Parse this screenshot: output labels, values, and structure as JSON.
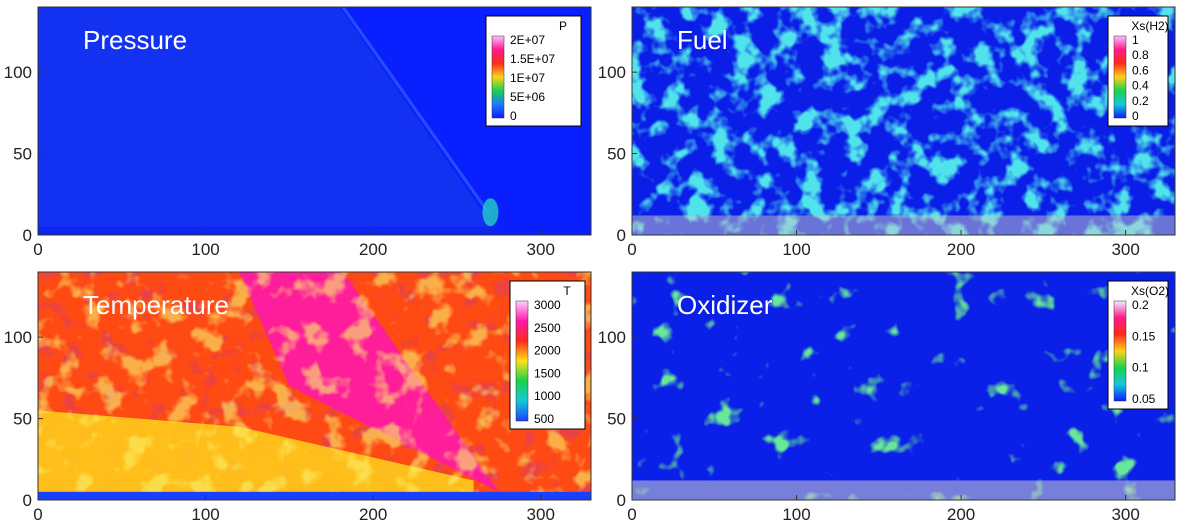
{
  "chart_data": [
    {
      "type": "heatmap",
      "title": "Pressure",
      "xlim": [
        0,
        330
      ],
      "ylim": [
        0,
        140
      ],
      "x_ticks": [
        "0",
        "100",
        "200",
        "300"
      ],
      "y_ticks": [
        "0",
        "50",
        "100"
      ],
      "legend": {
        "title": "P",
        "placement": "top-right",
        "labels": [
          "2E+07",
          "1.5E+07",
          "1E+07",
          "5E+06",
          "0"
        ],
        "values": [
          20000000,
          15000000,
          10000000,
          5000000,
          0
        ],
        "colors": [
          "#ffc0ff",
          "#ff1a8c",
          "#ff2a1a",
          "#ffd21a",
          "#19d24a",
          "#1f7bff",
          "#0a1fff"
        ]
      },
      "field": {
        "background": "#0d25ef",
        "feature": "oblique detonation front from about (180,140) down to (275,5)"
      }
    },
    {
      "type": "heatmap",
      "title": "Fuel",
      "xlim": [
        0,
        330
      ],
      "ylim": [
        0,
        140
      ],
      "x_ticks": [
        "0",
        "100",
        "200",
        "300"
      ],
      "y_ticks": [
        "0",
        "50",
        "100"
      ],
      "legend": {
        "title": "Xs(H2)",
        "placement": "top-right",
        "labels": [
          "1",
          "0.8",
          "0.6",
          "0.4",
          "0.2",
          "0"
        ],
        "values": [
          1,
          0.8,
          0.6,
          0.4,
          0.2,
          0
        ],
        "colors": [
          "#ffc0ff",
          "#ff1a8c",
          "#ff2a1a",
          "#ffd21a",
          "#19d24a",
          "#16c7d9",
          "#0a1fff"
        ]
      },
      "field": {
        "background": "#0a1ee8",
        "feature": "turbulent fuel structures, cyan/green"
      }
    },
    {
      "type": "heatmap",
      "title": "Temperature",
      "xlim": [
        0,
        330
      ],
      "ylim": [
        0,
        140
      ],
      "x_ticks": [
        "0",
        "100",
        "200",
        "300"
      ],
      "y_ticks": [
        "0",
        "50",
        "100"
      ],
      "legend": {
        "title": "T",
        "placement": "top-right",
        "labels": [
          "3000",
          "2500",
          "2000",
          "1500",
          "1000",
          "500"
        ],
        "values": [
          3000,
          2500,
          2000,
          1500,
          1000,
          500
        ],
        "colors": [
          "#ffd0ff",
          "#ff1aa8",
          "#ff2a1a",
          "#ffe01a",
          "#19d24a",
          "#16c7d9",
          "#1a40ff"
        ]
      },
      "field": {
        "background": "#ff4a14",
        "feature": "hot magenta region behind oblique front, yellow mixing layer near bottom"
      }
    },
    {
      "type": "heatmap",
      "title": "Oxidizer",
      "xlim": [
        0,
        330
      ],
      "ylim": [
        0,
        140
      ],
      "x_ticks": [
        "0",
        "100",
        "200",
        "300"
      ],
      "y_ticks": [
        "0",
        "50",
        "100"
      ],
      "legend": {
        "title": "Xs(O2)",
        "placement": "top-right",
        "labels": [
          "0.2",
          "0.15",
          "0.1",
          "0.05"
        ],
        "values": [
          0.2,
          0.15,
          0.1,
          0.05
        ],
        "colors": [
          "#f0f0ff",
          "#ff1a8c",
          "#ff2a1a",
          "#ffd21a",
          "#19d24a",
          "#16c7d9",
          "#0a1fff"
        ]
      },
      "field": {
        "background": "#0a1fe8",
        "feature": "sparse green/cyan oxidizer eddies"
      }
    }
  ]
}
